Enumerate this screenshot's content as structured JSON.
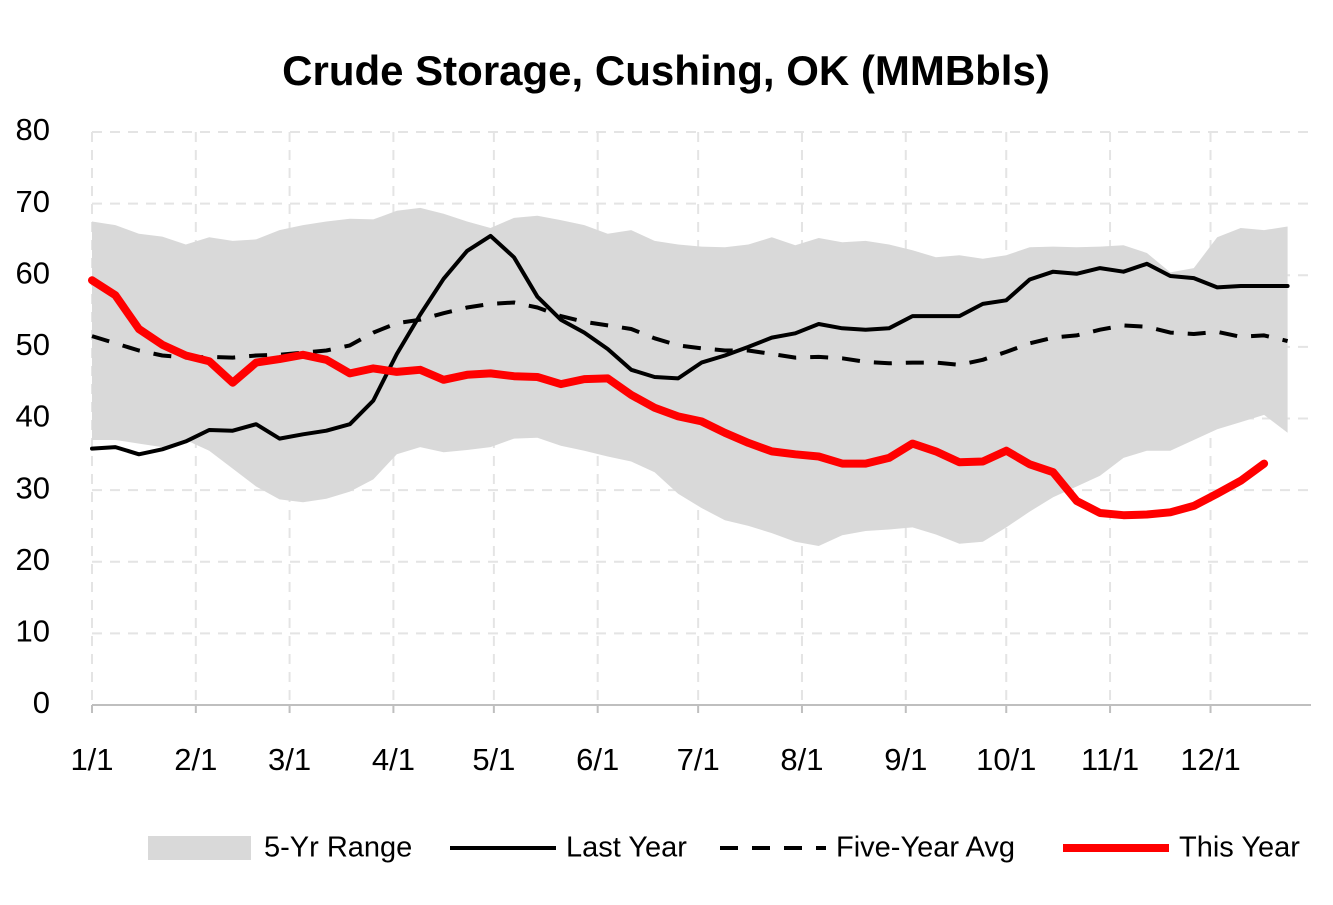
{
  "chart_data": {
    "type": "line",
    "title": "Crude Storage, Cushing, OK (MMBbls)",
    "x": [
      0,
      7,
      14,
      21,
      28,
      35,
      42,
      49,
      56,
      63,
      70,
      77,
      84,
      91,
      98,
      105,
      112,
      119,
      126,
      133,
      140,
      147,
      154,
      161,
      168,
      175,
      182,
      189,
      196,
      203,
      210,
      217,
      224,
      231,
      238,
      245,
      252,
      259,
      266,
      273,
      280,
      287,
      294,
      301,
      308,
      315,
      322,
      329,
      336,
      343,
      350,
      357
    ],
    "xlim": [
      0,
      364
    ],
    "xticks": [
      {
        "value": 0,
        "label": "1/1"
      },
      {
        "value": 31,
        "label": "2/1"
      },
      {
        "value": 59,
        "label": "3/1"
      },
      {
        "value": 90,
        "label": "4/1"
      },
      {
        "value": 120,
        "label": "5/1"
      },
      {
        "value": 151,
        "label": "6/1"
      },
      {
        "value": 181,
        "label": "7/1"
      },
      {
        "value": 212,
        "label": "8/1"
      },
      {
        "value": 243,
        "label": "9/1"
      },
      {
        "value": 273,
        "label": "10/1"
      },
      {
        "value": 304,
        "label": "11/1"
      },
      {
        "value": 334,
        "label": "12/1"
      }
    ],
    "ylim": [
      0,
      80
    ],
    "yticks": [
      0,
      10,
      20,
      30,
      40,
      50,
      60,
      70,
      80
    ],
    "grid": true,
    "legend": "bottom",
    "series": [
      {
        "name": "5-Yr Range",
        "color": "#d9d9d9",
        "kind": "band",
        "low": [
          37,
          37,
          36.5,
          36,
          37,
          35.5,
          33,
          30.5,
          28.7,
          28.3,
          28.8,
          29.8,
          31.5,
          35,
          36,
          35.3,
          35.6,
          36,
          37.2,
          37.3,
          36.2,
          35.5,
          34.7,
          34,
          32.5,
          29.5,
          27.5,
          25.8,
          25,
          24,
          22.8,
          22.2,
          23.7,
          24.3,
          24.5,
          24.8,
          23.8,
          22.5,
          22.8,
          24.8,
          27,
          29,
          30.5,
          32,
          34.5,
          35.5,
          35.5,
          37,
          38.5,
          39.5,
          40.5,
          38
        ],
        "high": [
          67.5,
          67,
          65.8,
          65.4,
          64.3,
          65.3,
          64.8,
          65,
          66.3,
          67,
          67.5,
          67.9,
          67.8,
          69,
          69.4,
          68.6,
          67.5,
          66.6,
          68,
          68.3,
          67.7,
          67,
          65.8,
          66.3,
          64.8,
          64.3,
          64,
          63.9,
          64.3,
          65.3,
          64.2,
          65.2,
          64.6,
          64.8,
          64.3,
          63.5,
          62.5,
          62.8,
          62.3,
          62.8,
          63.9,
          64,
          63.9,
          64,
          64.2,
          63.1,
          60.4,
          61,
          65.3,
          66.6,
          66.3,
          66.8
        ]
      },
      {
        "name": "Last Year",
        "color": "#000000",
        "dash": false,
        "width": 4,
        "values": [
          35.8,
          36,
          35,
          35.7,
          36.8,
          38.4,
          38.3,
          39.2,
          37.2,
          37.8,
          38.3,
          39.2,
          42.5,
          49,
          54.5,
          59.5,
          63.4,
          65.5,
          62.5,
          57,
          53.8,
          52,
          49.7,
          46.8,
          45.8,
          45.6,
          47.8,
          48.8,
          50,
          51.3,
          51.9,
          53.2,
          52.6,
          52.4,
          52.6,
          54.3,
          54.3,
          54.3,
          56,
          56.5,
          59.4,
          60.5,
          60.2,
          61,
          60.5,
          61.6,
          59.9,
          59.6,
          58.3,
          58.5,
          58.5,
          58.5
        ]
      },
      {
        "name": "Five-Year Avg",
        "color": "#000000",
        "dash": true,
        "width": 4,
        "values": [
          51.5,
          50.5,
          49.5,
          48.8,
          48.5,
          48.6,
          48.5,
          48.8,
          48.9,
          49.2,
          49.5,
          50.2,
          52,
          53.3,
          53.8,
          54.7,
          55.5,
          56,
          56.2,
          55.5,
          54.3,
          53.5,
          53,
          52.5,
          51.2,
          50.2,
          49.8,
          49.5,
          49.5,
          49,
          48.5,
          48.6,
          48.4,
          47.9,
          47.7,
          47.8,
          47.8,
          47.5,
          48.2,
          49.3,
          50.5,
          51.3,
          51.6,
          52.4,
          53,
          52.8,
          52,
          51.8,
          52.1,
          51.4,
          51.6,
          50.8
        ]
      },
      {
        "name": "This Year",
        "color": "#ff0000",
        "dash": false,
        "width": 8,
        "values": [
          59.3,
          57.2,
          52.5,
          50.3,
          48.8,
          48,
          45,
          47.8,
          48.3,
          48.9,
          48.2,
          46.3,
          47,
          46.5,
          46.8,
          45.4,
          46.1,
          46.3,
          45.9,
          45.8,
          44.8,
          45.5,
          45.6,
          43.3,
          41.5,
          40.3,
          39.6,
          38,
          36.6,
          35.4,
          35,
          34.7,
          33.7,
          33.7,
          34.5,
          36.5,
          35.4,
          33.9,
          34,
          35.5,
          33.6,
          32.5,
          28.5,
          26.8,
          26.5,
          26.6,
          26.9,
          27.8,
          29.5,
          31.3,
          33.7,
          null
        ]
      }
    ]
  }
}
